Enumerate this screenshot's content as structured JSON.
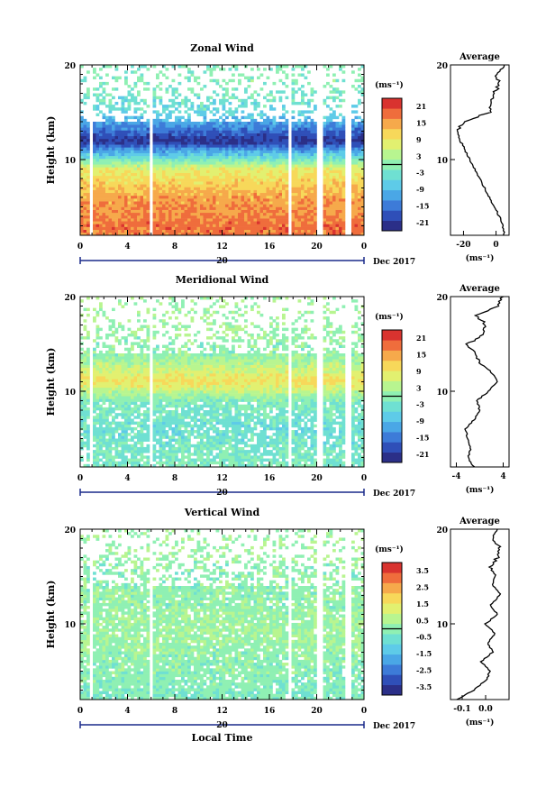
{
  "figure": {
    "xlabel_bottom": "Local Time",
    "date_label": "Dec 2017",
    "unit_label": "(ms⁻¹)",
    "colormap": [
      "#2b2f88",
      "#2f4fb8",
      "#3d7bd8",
      "#4aa7e6",
      "#5ecbe8",
      "#6fe0d2",
      "#8ff0b3",
      "#b8f590",
      "#e2f070",
      "#f7d85a",
      "#f6a94b",
      "#ef6d3c",
      "#d9332f"
    ]
  },
  "chart_data": [
    {
      "type": "heatmap",
      "title": "Zonal Wind",
      "ylabel": "Height (km)",
      "x_ticks": [
        "0",
        "4",
        "8",
        "12",
        "16",
        "20",
        "0"
      ],
      "day_label": "20",
      "y_ticks": [
        "20",
        "10"
      ],
      "ylim": [
        2,
        20
      ],
      "x_range_hours": [
        0,
        24
      ],
      "colorbar_ticks": [
        "21",
        "15",
        "9",
        "3",
        "-3",
        "-9",
        "-15",
        "-21"
      ],
      "colorbar_range": [
        -24,
        24
      ],
      "gaps_hours": [
        [
          0.75,
          1.05
        ],
        [
          5.8,
          6.15
        ],
        [
          17.5,
          17.85
        ],
        [
          20.05,
          20.4
        ],
        [
          22.5,
          22.8
        ]
      ],
      "profile_heights_km": [
        3,
        6,
        9,
        12,
        15,
        18
      ],
      "profile_values": [
        18,
        15,
        8,
        -22,
        -5,
        -1
      ],
      "average": {
        "title": "Average",
        "xticks": [
          "-20",
          "0"
        ],
        "xlabel": "(ms⁻¹)",
        "x_range": [
          -28,
          8
        ],
        "yticks": [
          "20",
          "10"
        ],
        "heights_km": [
          2,
          3,
          4,
          5,
          6,
          7,
          8,
          9,
          10,
          11,
          12,
          13,
          14,
          15,
          16,
          17,
          18,
          19,
          20
        ],
        "values": [
          5,
          4,
          2,
          -1,
          -4,
          -7,
          -10,
          -13,
          -16,
          -19,
          -22,
          -24,
          -20,
          -4,
          -3,
          -1,
          2,
          0,
          5
        ]
      }
    },
    {
      "type": "heatmap",
      "title": "Meridional Wind",
      "ylabel": "Height (km)",
      "x_ticks": [
        "0",
        "4",
        "8",
        "12",
        "16",
        "20",
        "0"
      ],
      "day_label": "20",
      "y_ticks": [
        "20",
        "10"
      ],
      "ylim": [
        2,
        20
      ],
      "x_range_hours": [
        0,
        24
      ],
      "colorbar_ticks": [
        "21",
        "15",
        "9",
        "3",
        "-3",
        "-9",
        "-15",
        "-21"
      ],
      "colorbar_range": [
        -24,
        24
      ],
      "gaps_hours": [
        [
          0.75,
          1.05
        ],
        [
          5.8,
          6.15
        ],
        [
          17.5,
          17.85
        ],
        [
          20.05,
          20.4
        ],
        [
          22.5,
          22.8
        ]
      ],
      "profile_heights_km": [
        3,
        6,
        9,
        11,
        14,
        18
      ],
      "profile_values": [
        -2,
        -4,
        -1,
        10,
        0,
        2
      ],
      "average": {
        "title": "Average",
        "xticks": [
          "-4",
          "4"
        ],
        "xlabel": "(ms⁻¹)",
        "x_range": [
          -5,
          5
        ],
        "yticks": [
          "20",
          "10"
        ],
        "heights_km": [
          2,
          3,
          4,
          5,
          6,
          7,
          8,
          9,
          10,
          11,
          12,
          13,
          14,
          15,
          16,
          17,
          18,
          19,
          20
        ],
        "values": [
          -1,
          -2,
          -1.5,
          -2,
          -2.5,
          -1,
          0,
          -0.5,
          1.5,
          3,
          2,
          0,
          -1,
          -2,
          0.5,
          1,
          -0.5,
          3,
          4
        ]
      }
    },
    {
      "type": "heatmap",
      "title": "Vertical Wind",
      "ylabel": "Height (km)",
      "x_ticks": [
        "0",
        "4",
        "8",
        "12",
        "16",
        "20",
        "0"
      ],
      "day_label": "20",
      "y_ticks": [
        "20",
        "10"
      ],
      "ylim": [
        2,
        20
      ],
      "x_range_hours": [
        0,
        24
      ],
      "colorbar_ticks": [
        "3.5",
        "2.5",
        "1.5",
        "0.5",
        "-0.5",
        "-1.5",
        "-2.5",
        "-3.5"
      ],
      "colorbar_range": [
        -4,
        4
      ],
      "gaps_hours": [
        [
          0.75,
          1.05
        ],
        [
          5.8,
          6.15
        ],
        [
          17.5,
          17.85
        ],
        [
          20.05,
          20.4
        ],
        [
          22.5,
          22.8
        ]
      ],
      "profile_heights_km": [
        3,
        6,
        9,
        12,
        15,
        18
      ],
      "profile_values": [
        -0.2,
        0,
        0.3,
        0.1,
        0,
        0.2
      ],
      "average": {
        "title": "Average",
        "xticks": [
          "-0.1",
          "0.0"
        ],
        "xlabel": "(ms⁻¹)",
        "x_range": [
          -0.15,
          0.1
        ],
        "yticks": [
          "20",
          "10"
        ],
        "heights_km": [
          2,
          3,
          4,
          5,
          6,
          7,
          8,
          9,
          10,
          11,
          12,
          13,
          14,
          15,
          16,
          17,
          18,
          19,
          20
        ],
        "values": [
          -0.12,
          -0.05,
          0.0,
          0.02,
          -0.02,
          0.03,
          0.01,
          0.04,
          0.0,
          0.05,
          0.02,
          0.06,
          0.03,
          0.04,
          0.02,
          0.05,
          0.06,
          0.03,
          0.05
        ]
      }
    }
  ]
}
